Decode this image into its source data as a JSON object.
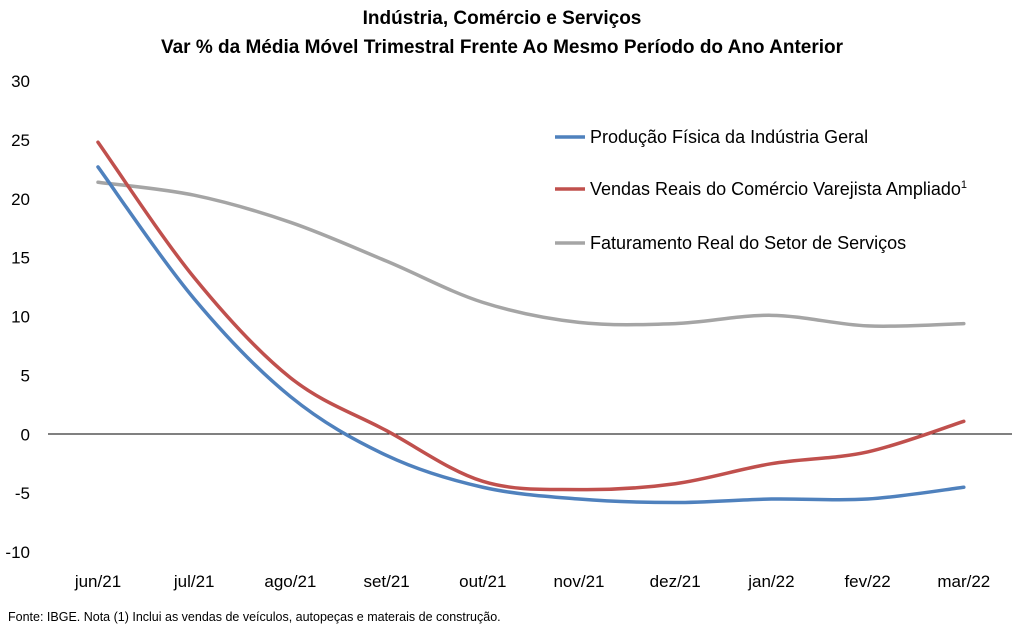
{
  "chart_data": {
    "type": "line",
    "title": "Indústria, Comércio e Serviços",
    "subtitle": "Var % da Média Móvel Trimestral Frente Ao Mesmo Período do Ano Anterior",
    "categories": [
      "jun/21",
      "jul/21",
      "ago/21",
      "set/21",
      "out/21",
      "nov/21",
      "dez/21",
      "jan/22",
      "fev/22",
      "mar/22"
    ],
    "ylim": [
      -10,
      30
    ],
    "yticks": [
      -10,
      -5,
      0,
      5,
      10,
      15,
      20,
      25,
      30
    ],
    "grid": false,
    "legend_position": "top-right",
    "series": [
      {
        "name": "Produção Física da Indústria Geral",
        "color": "#4f81bd",
        "values": [
          22.7,
          11.5,
          3.2,
          -1.8,
          -4.5,
          -5.5,
          -5.8,
          -5.5,
          -5.5,
          -4.5
        ]
      },
      {
        "name": "Vendas Reais do Comércio Varejista Ampliado",
        "name_superscript": "1",
        "color": "#c0504d",
        "values": [
          24.8,
          13.3,
          4.8,
          0.3,
          -4.0,
          -4.7,
          -4.2,
          -2.5,
          -1.5,
          1.1
        ]
      },
      {
        "name": "Faturamento Real do Setor de Serviços",
        "color": "#a5a5a5",
        "values": [
          21.4,
          20.3,
          18.0,
          14.7,
          11.2,
          9.5,
          9.4,
          10.1,
          9.2,
          9.4
        ]
      }
    ],
    "source_note": "Fonte: IBGE. Nota (1) Inclui as vendas de veículos, autopeças e materais de construção."
  }
}
